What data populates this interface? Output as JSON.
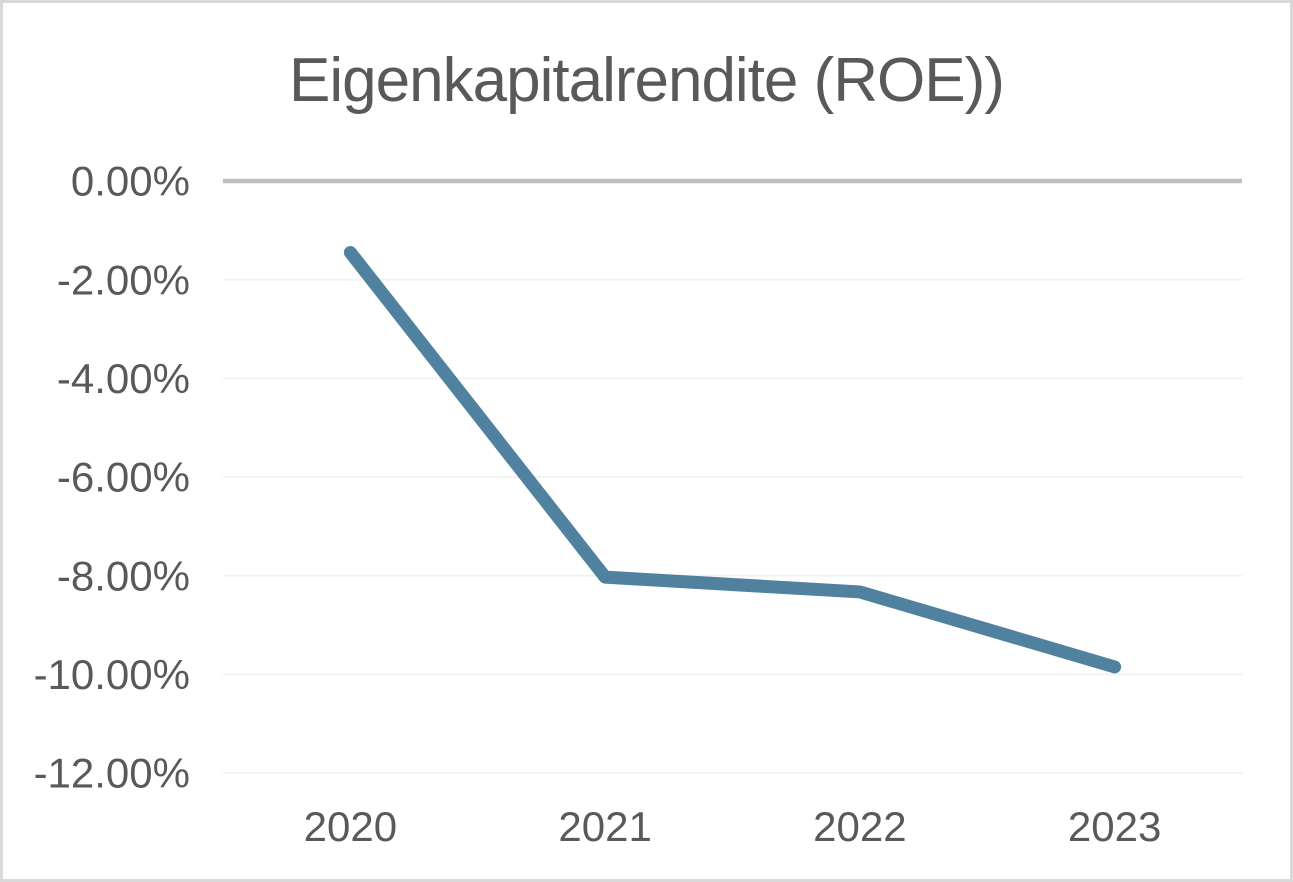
{
  "chart_data": {
    "type": "line",
    "title": "Eigenkapitalrendite (ROE))",
    "categories": [
      "2020",
      "2021",
      "2022",
      "2023"
    ],
    "series": [
      {
        "name": "Eigenkapitalrendite (ROE)",
        "values": [
          -1.45,
          -8.03,
          -8.33,
          -9.85
        ]
      }
    ],
    "unit": "%",
    "xlabel": "",
    "ylabel": "",
    "ylim": [
      -12,
      0
    ],
    "y_ticks": [
      {
        "value": 0,
        "label": "0.00%"
      },
      {
        "value": -2,
        "label": "-2.00%"
      },
      {
        "value": -4,
        "label": "-4.00%"
      },
      {
        "value": -6,
        "label": "-6.00%"
      },
      {
        "value": -8,
        "label": "-8.00%"
      },
      {
        "value": -10,
        "label": "-10.00%"
      },
      {
        "value": -12,
        "label": "-12.00%"
      }
    ],
    "grid": true,
    "legend_position": "none",
    "colors": {
      "line": "#50819f",
      "title_text": "#595959",
      "axis_text": "#595959",
      "gridline": "#f2f2f2",
      "zero_axis": "#bfbfbf",
      "frame_border": "#d9d9d9",
      "background": "#ffffff"
    }
  }
}
